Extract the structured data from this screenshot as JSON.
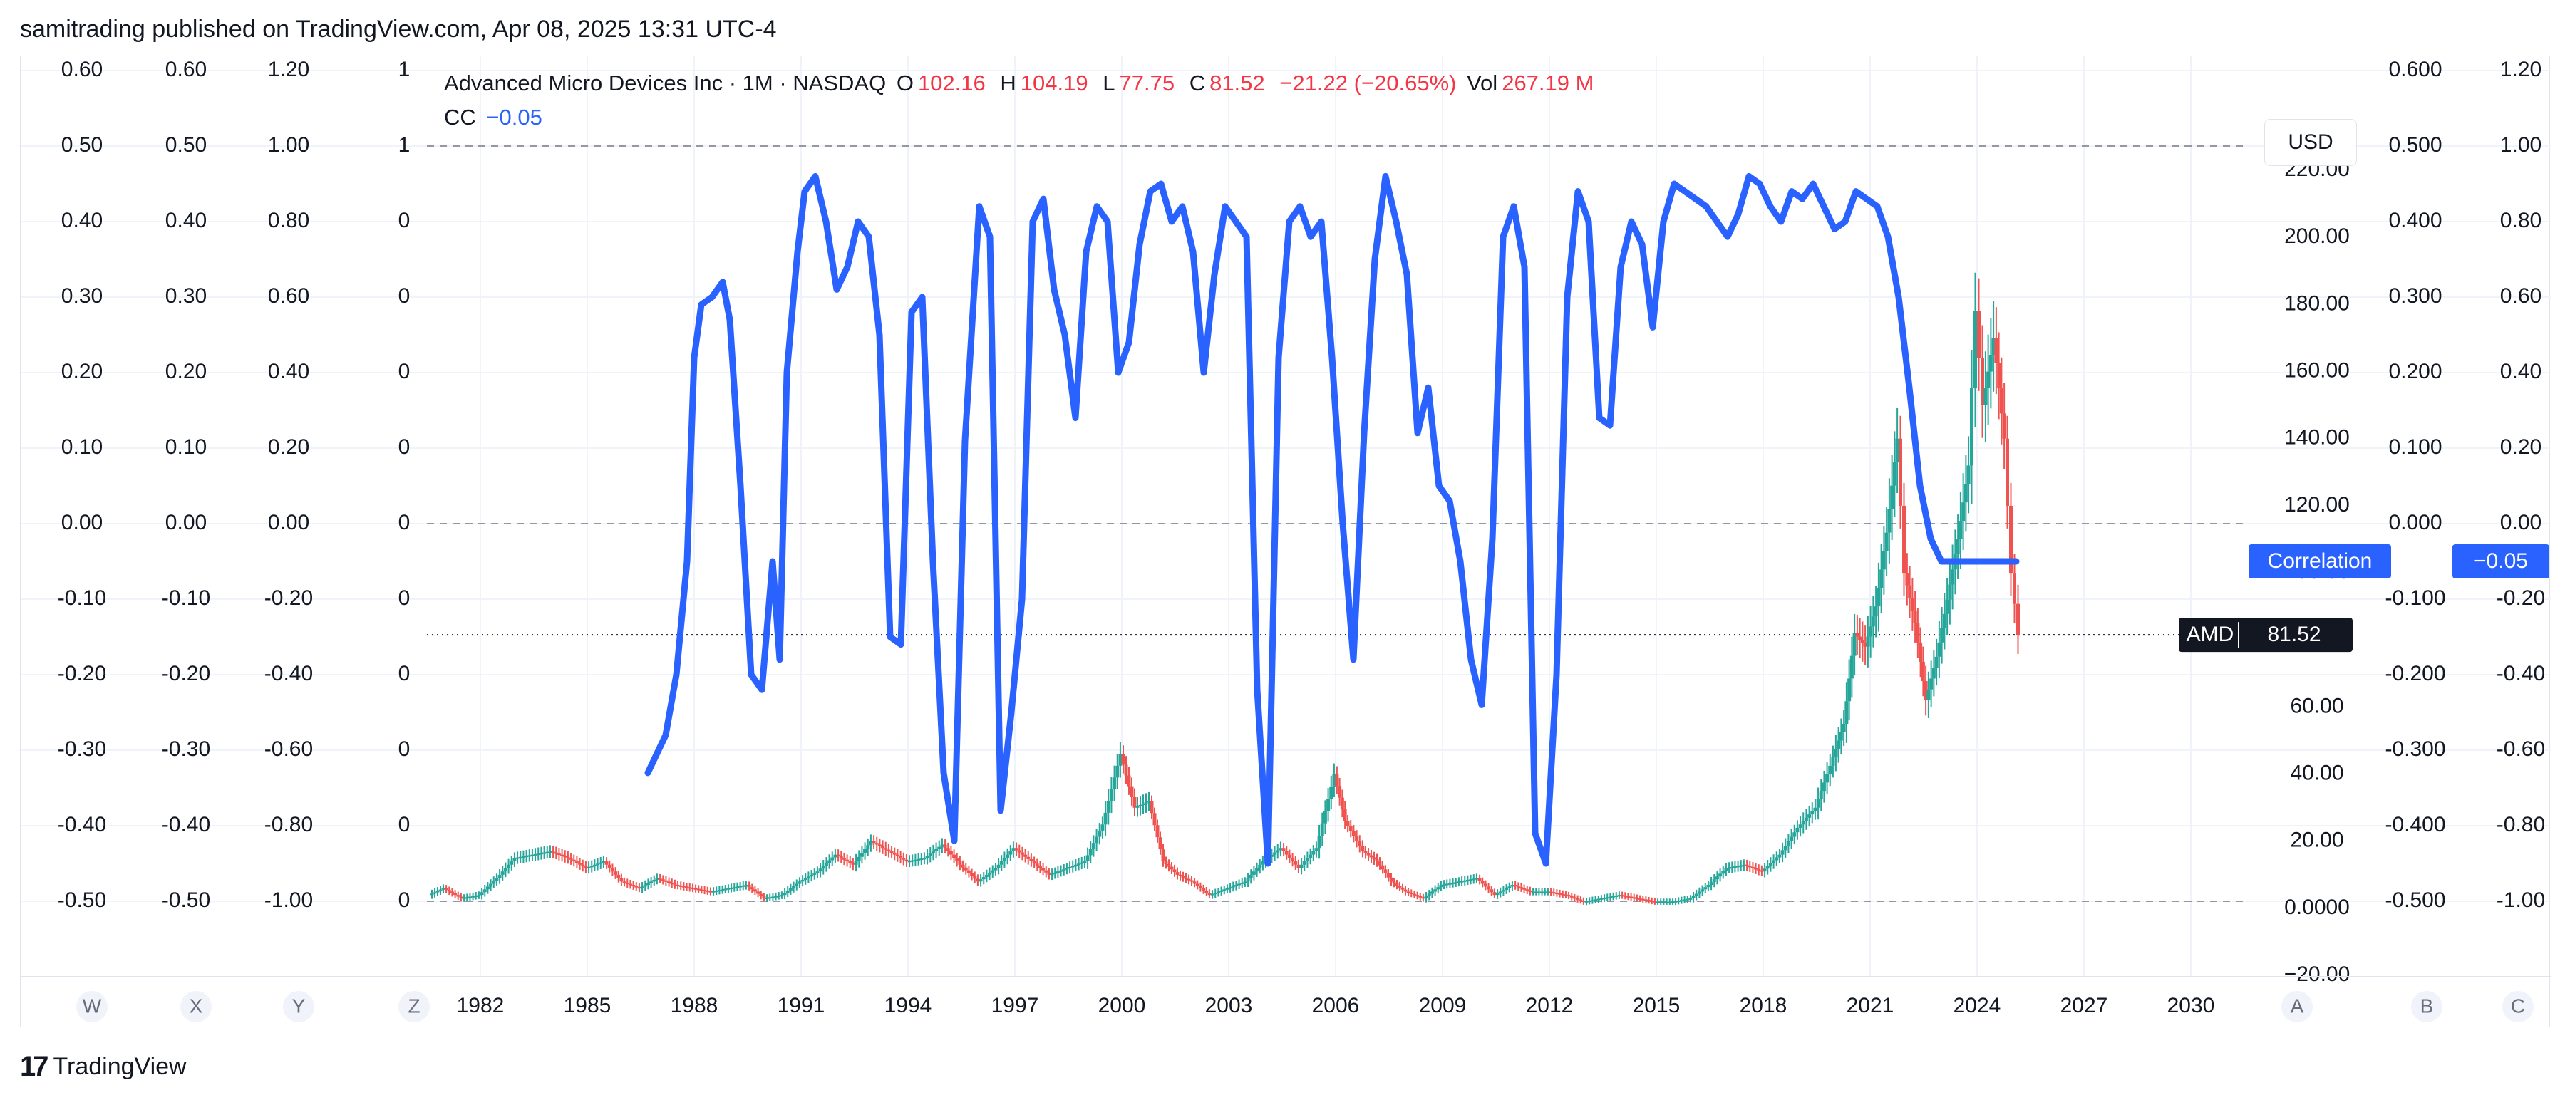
{
  "attribution": "samitrading published on TradingView.com, Apr 08, 2025 13:31 UTC-4",
  "footer": {
    "brand": "TradingView"
  },
  "header": {
    "symbol_line": "Advanced Micro Devices Inc · 1M · NASDAQ",
    "open_label": "O",
    "open_value": "102.16",
    "high_label": "H",
    "high_value": "104.19",
    "low_label": "L",
    "low_value": "77.75",
    "close_label": "C",
    "close_value": "81.52",
    "change": "−21.22 (−20.65%)",
    "vol_label": "Vol",
    "vol_value": "267.19 M",
    "indicator_name": "CC",
    "indicator_value": "−0.05"
  },
  "currency_button": "USD",
  "colors": {
    "up": "#26a69a",
    "down": "#ef5350",
    "correlation": "#2962ff",
    "grid": "#f0f3fa"
  },
  "chart_data": {
    "type": "line",
    "x_tick_labels": [
      "1982",
      "1985",
      "1988",
      "1991",
      "1994",
      "1997",
      "2000",
      "2003",
      "2006",
      "2009",
      "2012",
      "2015",
      "2018",
      "2021",
      "2024",
      "2027",
      "2030"
    ],
    "price_axis": {
      "ticks": [
        "−20.00",
        "0.0000",
        "20.00",
        "40.00",
        "60.00",
        "80.00",
        "100.00",
        "120.00",
        "140.00",
        "160.00",
        "180.00",
        "200.00",
        "220.00"
      ],
      "range": [
        -20,
        230
      ]
    },
    "left_scales": [
      {
        "letter": "W",
        "ticks": [
          "0.60",
          "0.50",
          "0.40",
          "0.30",
          "0.20",
          "0.10",
          "0.00",
          "-0.10",
          "-0.20",
          "-0.30",
          "-0.40",
          "-0.50"
        ]
      },
      {
        "letter": "X",
        "ticks": [
          "0.60",
          "0.50",
          "0.40",
          "0.30",
          "0.20",
          "0.10",
          "0.00",
          "-0.10",
          "-0.20",
          "-0.30",
          "-0.40",
          "-0.50"
        ]
      },
      {
        "letter": "Y",
        "ticks": [
          "1.20",
          "1.00",
          "0.80",
          "0.60",
          "0.40",
          "0.20",
          "0.00",
          "-0.20",
          "-0.40",
          "-0.60",
          "-0.80",
          "-1.00"
        ]
      },
      {
        "letter": "Z",
        "ticks": [
          "1",
          "1",
          "0",
          "0",
          "0",
          "0",
          "0",
          "0",
          "0",
          "0",
          "0",
          "0"
        ]
      }
    ],
    "right_scales": [
      {
        "letter": "B",
        "ticks": [
          "0.600",
          "0.500",
          "0.400",
          "0.300",
          "0.200",
          "0.100",
          "0.000",
          "-0.100",
          "-0.200",
          "-0.300",
          "-0.400",
          "-0.500"
        ]
      },
      {
        "letter": "C",
        "ticks": [
          "1.20",
          "1.00",
          "0.80",
          "0.60",
          "0.40",
          "0.20",
          "0.00",
          "-0.20",
          "-0.40",
          "-0.60",
          "-0.80",
          "-1.00"
        ]
      }
    ],
    "scale_a_letter": "A",
    "series": [
      {
        "name": "Correlation",
        "axis": "correlation",
        "range": [
          -0.5,
          0.6
        ],
        "x": [
          1986.7,
          1986.9,
          1987.2,
          1987.5,
          1987.8,
          1988.0,
          1988.2,
          1988.5,
          1988.8,
          1989.0,
          1989.3,
          1989.6,
          1989.9,
          1990.2,
          1990.4,
          1990.6,
          1990.9,
          1991.1,
          1991.4,
          1991.7,
          1992.0,
          1992.3,
          1992.6,
          1992.9,
          1993.2,
          1993.5,
          1993.8,
          1994.1,
          1994.4,
          1994.7,
          1995.0,
          1995.3,
          1995.6,
          1996.0,
          1996.3,
          1996.6,
          1996.9,
          1997.2,
          1997.5,
          1997.8,
          1998.1,
          1998.4,
          1998.7,
          1999.0,
          1999.3,
          1999.6,
          1999.9,
          2000.2,
          2000.5,
          2000.8,
          2001.1,
          2001.4,
          2001.7,
          2002.0,
          2002.3,
          2002.6,
          2002.9,
          2003.2,
          2003.5,
          2003.8,
          2004.1,
          2004.4,
          2004.7,
          2005.0,
          2005.3,
          2005.6,
          2005.9,
          2006.2,
          2006.5,
          2006.8,
          2007.1,
          2007.4,
          2007.7,
          2008.0,
          2008.3,
          2008.6,
          2008.9,
          2009.2,
          2009.5,
          2009.8,
          2010.1,
          2010.4,
          2010.7,
          2011.0,
          2011.3,
          2011.6,
          2011.9,
          2012.2,
          2012.5,
          2012.8,
          2013.1,
          2013.4,
          2013.7,
          2014.0,
          2014.3,
          2014.6,
          2014.9,
          2015.2,
          2015.5,
          2015.8,
          2016.1,
          2016.4,
          2016.7,
          2017.0,
          2017.3,
          2017.6,
          2017.9,
          2018.2,
          2018.5,
          2018.8,
          2019.1,
          2019.4,
          2019.7,
          2020.0,
          2020.3,
          2020.6,
          2020.9,
          2021.2,
          2021.5,
          2021.8,
          2022.1,
          2022.4,
          2022.7,
          2023.0,
          2023.3,
          2023.6,
          2023.9,
          2024.2,
          2024.5,
          2024.8,
          2025.1
        ],
        "values": [
          -0.33,
          -0.31,
          -0.28,
          -0.2,
          -0.05,
          0.22,
          0.29,
          0.3,
          0.32,
          0.27,
          0.05,
          -0.2,
          -0.22,
          -0.05,
          -0.18,
          0.2,
          0.36,
          0.44,
          0.46,
          0.4,
          0.31,
          0.34,
          0.4,
          0.38,
          0.25,
          -0.15,
          -0.16,
          0.28,
          0.3,
          -0.05,
          -0.33,
          -0.42,
          0.11,
          0.42,
          0.38,
          -0.38,
          -0.25,
          -0.1,
          0.4,
          0.43,
          0.31,
          0.25,
          0.14,
          0.36,
          0.42,
          0.4,
          0.2,
          0.24,
          0.37,
          0.44,
          0.45,
          0.4,
          0.42,
          0.36,
          0.2,
          0.33,
          0.42,
          0.4,
          0.38,
          -0.22,
          -0.45,
          0.22,
          0.4,
          0.42,
          0.38,
          0.4,
          0.22,
          0.0,
          -0.18,
          0.12,
          0.35,
          0.46,
          0.4,
          0.33,
          0.12,
          0.18,
          0.05,
          0.03,
          -0.05,
          -0.18,
          -0.24,
          -0.02,
          0.38,
          0.42,
          0.34,
          -0.41,
          -0.45,
          -0.2,
          0.3,
          0.44,
          0.4,
          0.14,
          0.13,
          0.34,
          0.4,
          0.37,
          0.26,
          0.4,
          0.45,
          0.44,
          0.43,
          0.42,
          0.4,
          0.38,
          0.41,
          0.46,
          0.45,
          0.42,
          0.4,
          0.44,
          0.43,
          0.45,
          0.42,
          0.39,
          0.4,
          0.44,
          0.43,
          0.42,
          0.38,
          0.3,
          0.18,
          0.05,
          -0.02,
          -0.05,
          -0.05,
          -0.05,
          -0.05,
          -0.05,
          -0.05,
          -0.05,
          -0.05
        ],
        "last_value": "−0.05"
      },
      {
        "name": "AMD",
        "axis": "price",
        "x": [
          1980.6,
          1981.0,
          1981.5,
          1982.0,
          1982.5,
          1983.0,
          1983.5,
          1984.0,
          1984.5,
          1985.0,
          1985.5,
          1986.0,
          1986.5,
          1987.0,
          1987.5,
          1988.0,
          1988.5,
          1989.0,
          1989.5,
          1990.0,
          1990.5,
          1991.0,
          1991.5,
          1992.0,
          1992.5,
          1993.0,
          1993.5,
          1994.0,
          1994.5,
          1995.0,
          1995.5,
          1996.0,
          1996.5,
          1997.0,
          1997.5,
          1998.0,
          1998.5,
          1999.0,
          1999.5,
          2000.0,
          2000.4,
          2000.8,
          2001.2,
          2001.6,
          2002.0,
          2002.5,
          2003.0,
          2003.5,
          2004.0,
          2004.5,
          2005.0,
          2005.5,
          2006.0,
          2006.3,
          2006.8,
          2007.2,
          2007.6,
          2008.0,
          2008.5,
          2009.0,
          2009.5,
          2010.0,
          2010.5,
          2011.0,
          2011.5,
          2012.0,
          2012.5,
          2013.0,
          2013.5,
          2014.0,
          2014.5,
          2015.0,
          2015.5,
          2016.0,
          2016.5,
          2017.0,
          2017.5,
          2018.0,
          2018.5,
          2019.0,
          2019.5,
          2020.0,
          2020.3,
          2020.6,
          2020.9,
          2021.2,
          2021.5,
          2021.8,
          2022.0,
          2022.3,
          2022.6,
          2022.9,
          2023.2,
          2023.5,
          2023.8,
          2024.0,
          2024.2,
          2024.5,
          2024.8,
          2025.0,
          2025.2
        ],
        "values": [
          4,
          6,
          3,
          4,
          9,
          15,
          16,
          17,
          15,
          12,
          14,
          8,
          6,
          9,
          7,
          6,
          5,
          6,
          7,
          3,
          4,
          8,
          11,
          16,
          13,
          20,
          17,
          14,
          15,
          19,
          13,
          8,
          12,
          18,
          14,
          10,
          12,
          14,
          25,
          46,
          30,
          32,
          14,
          10,
          8,
          4,
          6,
          8,
          14,
          18,
          12,
          18,
          40,
          26,
          17,
          14,
          8,
          5,
          3,
          7,
          8,
          9,
          4,
          7,
          5,
          5,
          4,
          2,
          3,
          4,
          3,
          2,
          2,
          3,
          7,
          12,
          13,
          11,
          16,
          24,
          30,
          45,
          55,
          82,
          78,
          90,
          112,
          140,
          100,
          85,
          62,
          75,
          92,
          110,
          132,
          178,
          150,
          170,
          140,
          100,
          81.52
        ],
        "last_value": "81.52"
      }
    ],
    "correlation_label": "Correlation",
    "price_label": "AMD",
    "dashed_levels": [
      "1",
      "0",
      "-1"
    ],
    "grid": true,
    "legend": "top-left"
  }
}
